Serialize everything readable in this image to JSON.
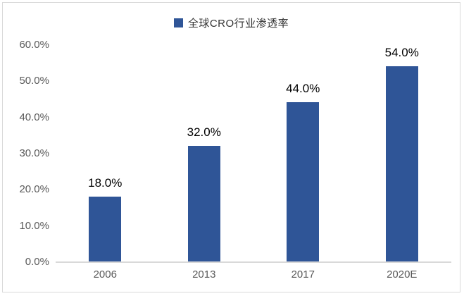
{
  "chart_data": {
    "type": "bar",
    "title": "",
    "legend": "全球CRO行业渗透率",
    "legend_position": "top-center",
    "categories": [
      "2006",
      "2013",
      "2017",
      "2020E"
    ],
    "values": [
      18.0,
      32.0,
      44.0,
      54.0
    ],
    "data_labels": [
      "18.0%",
      "32.0%",
      "44.0%",
      "54.0%"
    ],
    "ylabel": "",
    "xlabel": "",
    "ylim": [
      0,
      60
    ],
    "ytick_step": 10,
    "yticks": [
      {
        "label": "0.0%",
        "value": 0
      },
      {
        "label": "10.0%",
        "value": 10
      },
      {
        "label": "20.0%",
        "value": 20
      },
      {
        "label": "30.0%",
        "value": 30
      },
      {
        "label": "40.0%",
        "value": 40
      },
      {
        "label": "50.0%",
        "value": 50
      },
      {
        "label": "60.0%",
        "value": 60
      }
    ],
    "grid": false,
    "colors": {
      "bar": "#2F5597",
      "axis_line": "#D9D9D9",
      "tick_label": "#595959",
      "data_label": "#000000",
      "legend_text": "#333333",
      "border": "#D9D9D9",
      "background": "#FFFFFF"
    }
  }
}
